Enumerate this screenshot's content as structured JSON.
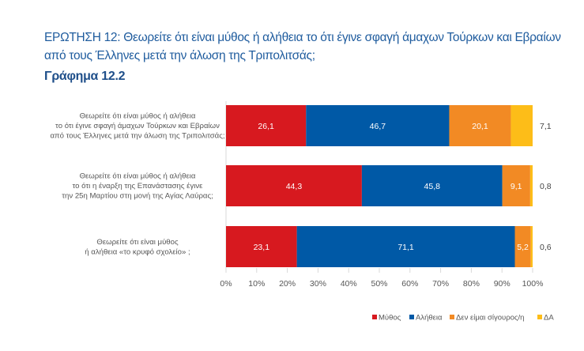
{
  "title": "ΕΡΩΤΗΣΗ 12: Θεωρείτε ότι είναι μύθος ή αλήθεια το ότι έγινε σφαγή άμαχων Τούρκων και Εβραίων από τους Έλληνες μετά την άλωση της Τριπολιτσάς;",
  "subtitle": "Γράφημα 12.2",
  "chart_data": {
    "type": "bar",
    "orientation": "horizontal",
    "stacked": "percent",
    "categories": [
      [
        "Θεωρείτε ότι είναι μύθος ή αλήθεια",
        "το ότι έγινε σφαγή άμαχων Τούρκων και Εβραίων",
        "από τους Έλληνες μετά την άλωση της Τριπολιτσάς;"
      ],
      [
        "Θεωρείτε ότι είναι μύθος ή αλήθεια",
        "το ότι η έναρξη της Επανάστασης έγινε",
        "την 25η Μαρτίου στη μονή της Αγίας Λαύρας;"
      ],
      [
        "Θεωρείτε ότι είναι μύθος",
        "ή αλήθεια «το κρυφό σχολείο» ;"
      ]
    ],
    "series": [
      {
        "name": "Μύθος",
        "values": [
          26.1,
          44.3,
          23.1
        ],
        "labels": [
          "26,1",
          "44,3",
          "23,1"
        ],
        "color": "#d7191f"
      },
      {
        "name": "Αλήθεια",
        "values": [
          46.7,
          45.8,
          71.1
        ],
        "labels": [
          "46,7",
          "45,8",
          "71,1"
        ],
        "color": "#0059a6"
      },
      {
        "name": "Δεν είμαι σίγουρος/η",
        "values": [
          20.1,
          9.1,
          5.2
        ],
        "labels": [
          "20,1",
          "9,1",
          "5,2"
        ],
        "color": "#f28a24"
      },
      {
        "name": "ΔΑ",
        "values": [
          7.1,
          0.8,
          0.6
        ],
        "labels": [
          "7,1",
          "0,8",
          "0,6"
        ],
        "color": "#fdbd18"
      }
    ],
    "xlim": [
      0,
      100
    ],
    "xticks": [
      "0%",
      "10%",
      "20%",
      "30%",
      "40%",
      "50%",
      "60%",
      "70%",
      "80%",
      "90%",
      "100%"
    ],
    "grid": false,
    "legend": "bottom-right"
  }
}
